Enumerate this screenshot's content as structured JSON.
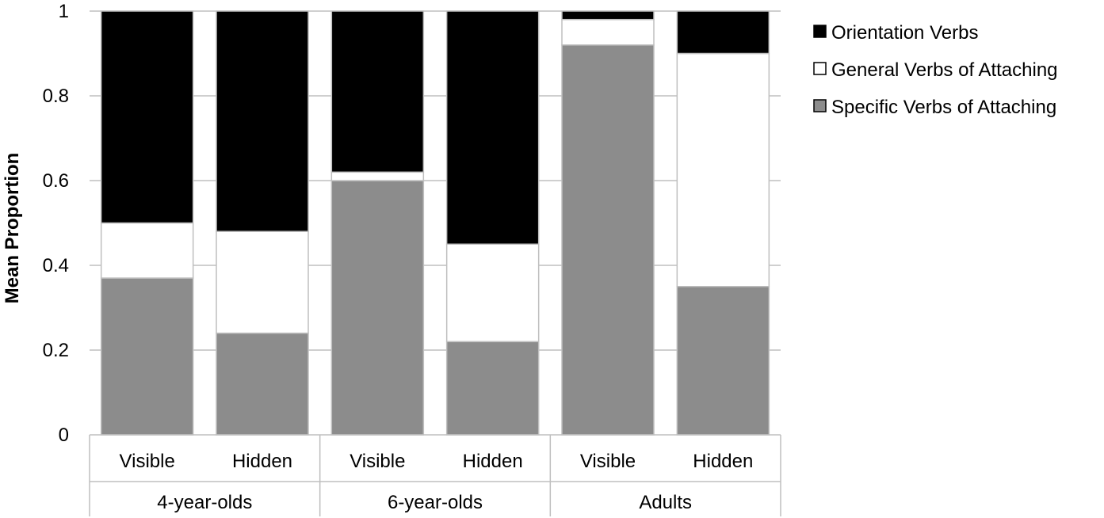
{
  "chart_data": {
    "type": "bar",
    "stacked": true,
    "title": "",
    "xlabel": "",
    "ylabel": "Mean Proportion",
    "ylim": [
      0,
      1
    ],
    "yticks": [
      0,
      0.2,
      0.4,
      0.6,
      0.8,
      1
    ],
    "ytick_labels": [
      "0",
      "0.2",
      "0.4",
      "0.6",
      "0.8",
      "1"
    ],
    "grid": true,
    "legend_position": "top-right",
    "categories": [
      "Visible",
      "Hidden",
      "Visible",
      "Hidden",
      "Visible",
      "Hidden"
    ],
    "groups": [
      {
        "label": "4-year-olds",
        "count": 2
      },
      {
        "label": "6-year-olds",
        "count": 2
      },
      {
        "label": "Adults",
        "count": 2
      }
    ],
    "series": [
      {
        "name": "Specific Verbs of Attaching",
        "color": "#8c8c8c",
        "values": [
          0.37,
          0.24,
          0.6,
          0.22,
          0.92,
          0.35
        ]
      },
      {
        "name": "General Verbs of Attaching",
        "color": "#ffffff",
        "values": [
          0.13,
          0.24,
          0.02,
          0.23,
          0.06,
          0.55
        ]
      },
      {
        "name": "Orientation Verbs",
        "color": "#000000",
        "values": [
          0.5,
          0.52,
          0.38,
          0.55,
          0.02,
          0.1
        ]
      }
    ],
    "legend_order": [
      "Orientation Verbs",
      "General Verbs of Attaching",
      "Specific Verbs of Attaching"
    ]
  }
}
